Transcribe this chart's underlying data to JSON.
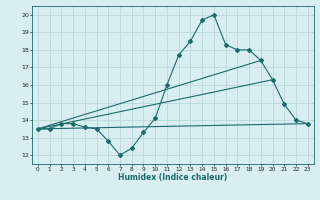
{
  "xlabel": "Humidex (Indice chaleur)",
  "bg_color": "#d8eef0",
  "grid_color": "#b8d8da",
  "line_color": "#1a6b6b",
  "xlim": [
    -0.5,
    23.5
  ],
  "ylim": [
    11.5,
    20.5
  ],
  "xticks": [
    0,
    1,
    2,
    3,
    4,
    5,
    6,
    7,
    8,
    9,
    10,
    11,
    12,
    13,
    14,
    15,
    16,
    17,
    18,
    19,
    20,
    21,
    22,
    23
  ],
  "yticks": [
    12,
    13,
    14,
    15,
    16,
    17,
    18,
    19,
    20
  ],
  "curve1_x": [
    0,
    1,
    2,
    3,
    4,
    5,
    6,
    7,
    8,
    9,
    10,
    11,
    12,
    13,
    14,
    15,
    16,
    17,
    18,
    19,
    20,
    21,
    22,
    23
  ],
  "curve1_y": [
    13.5,
    13.5,
    13.8,
    13.8,
    13.6,
    13.5,
    12.8,
    12.0,
    12.4,
    13.3,
    14.1,
    16.0,
    17.7,
    18.5,
    19.7,
    20.0,
    18.3,
    18.0,
    18.0,
    17.4,
    16.3,
    14.9,
    14.0,
    13.8
  ],
  "line2_x": [
    0,
    23
  ],
  "line2_y": [
    13.5,
    13.8
  ],
  "line3_x": [
    0,
    19
  ],
  "line3_y": [
    13.5,
    17.4
  ],
  "line4_x": [
    0,
    20
  ],
  "line4_y": [
    13.5,
    16.3
  ]
}
